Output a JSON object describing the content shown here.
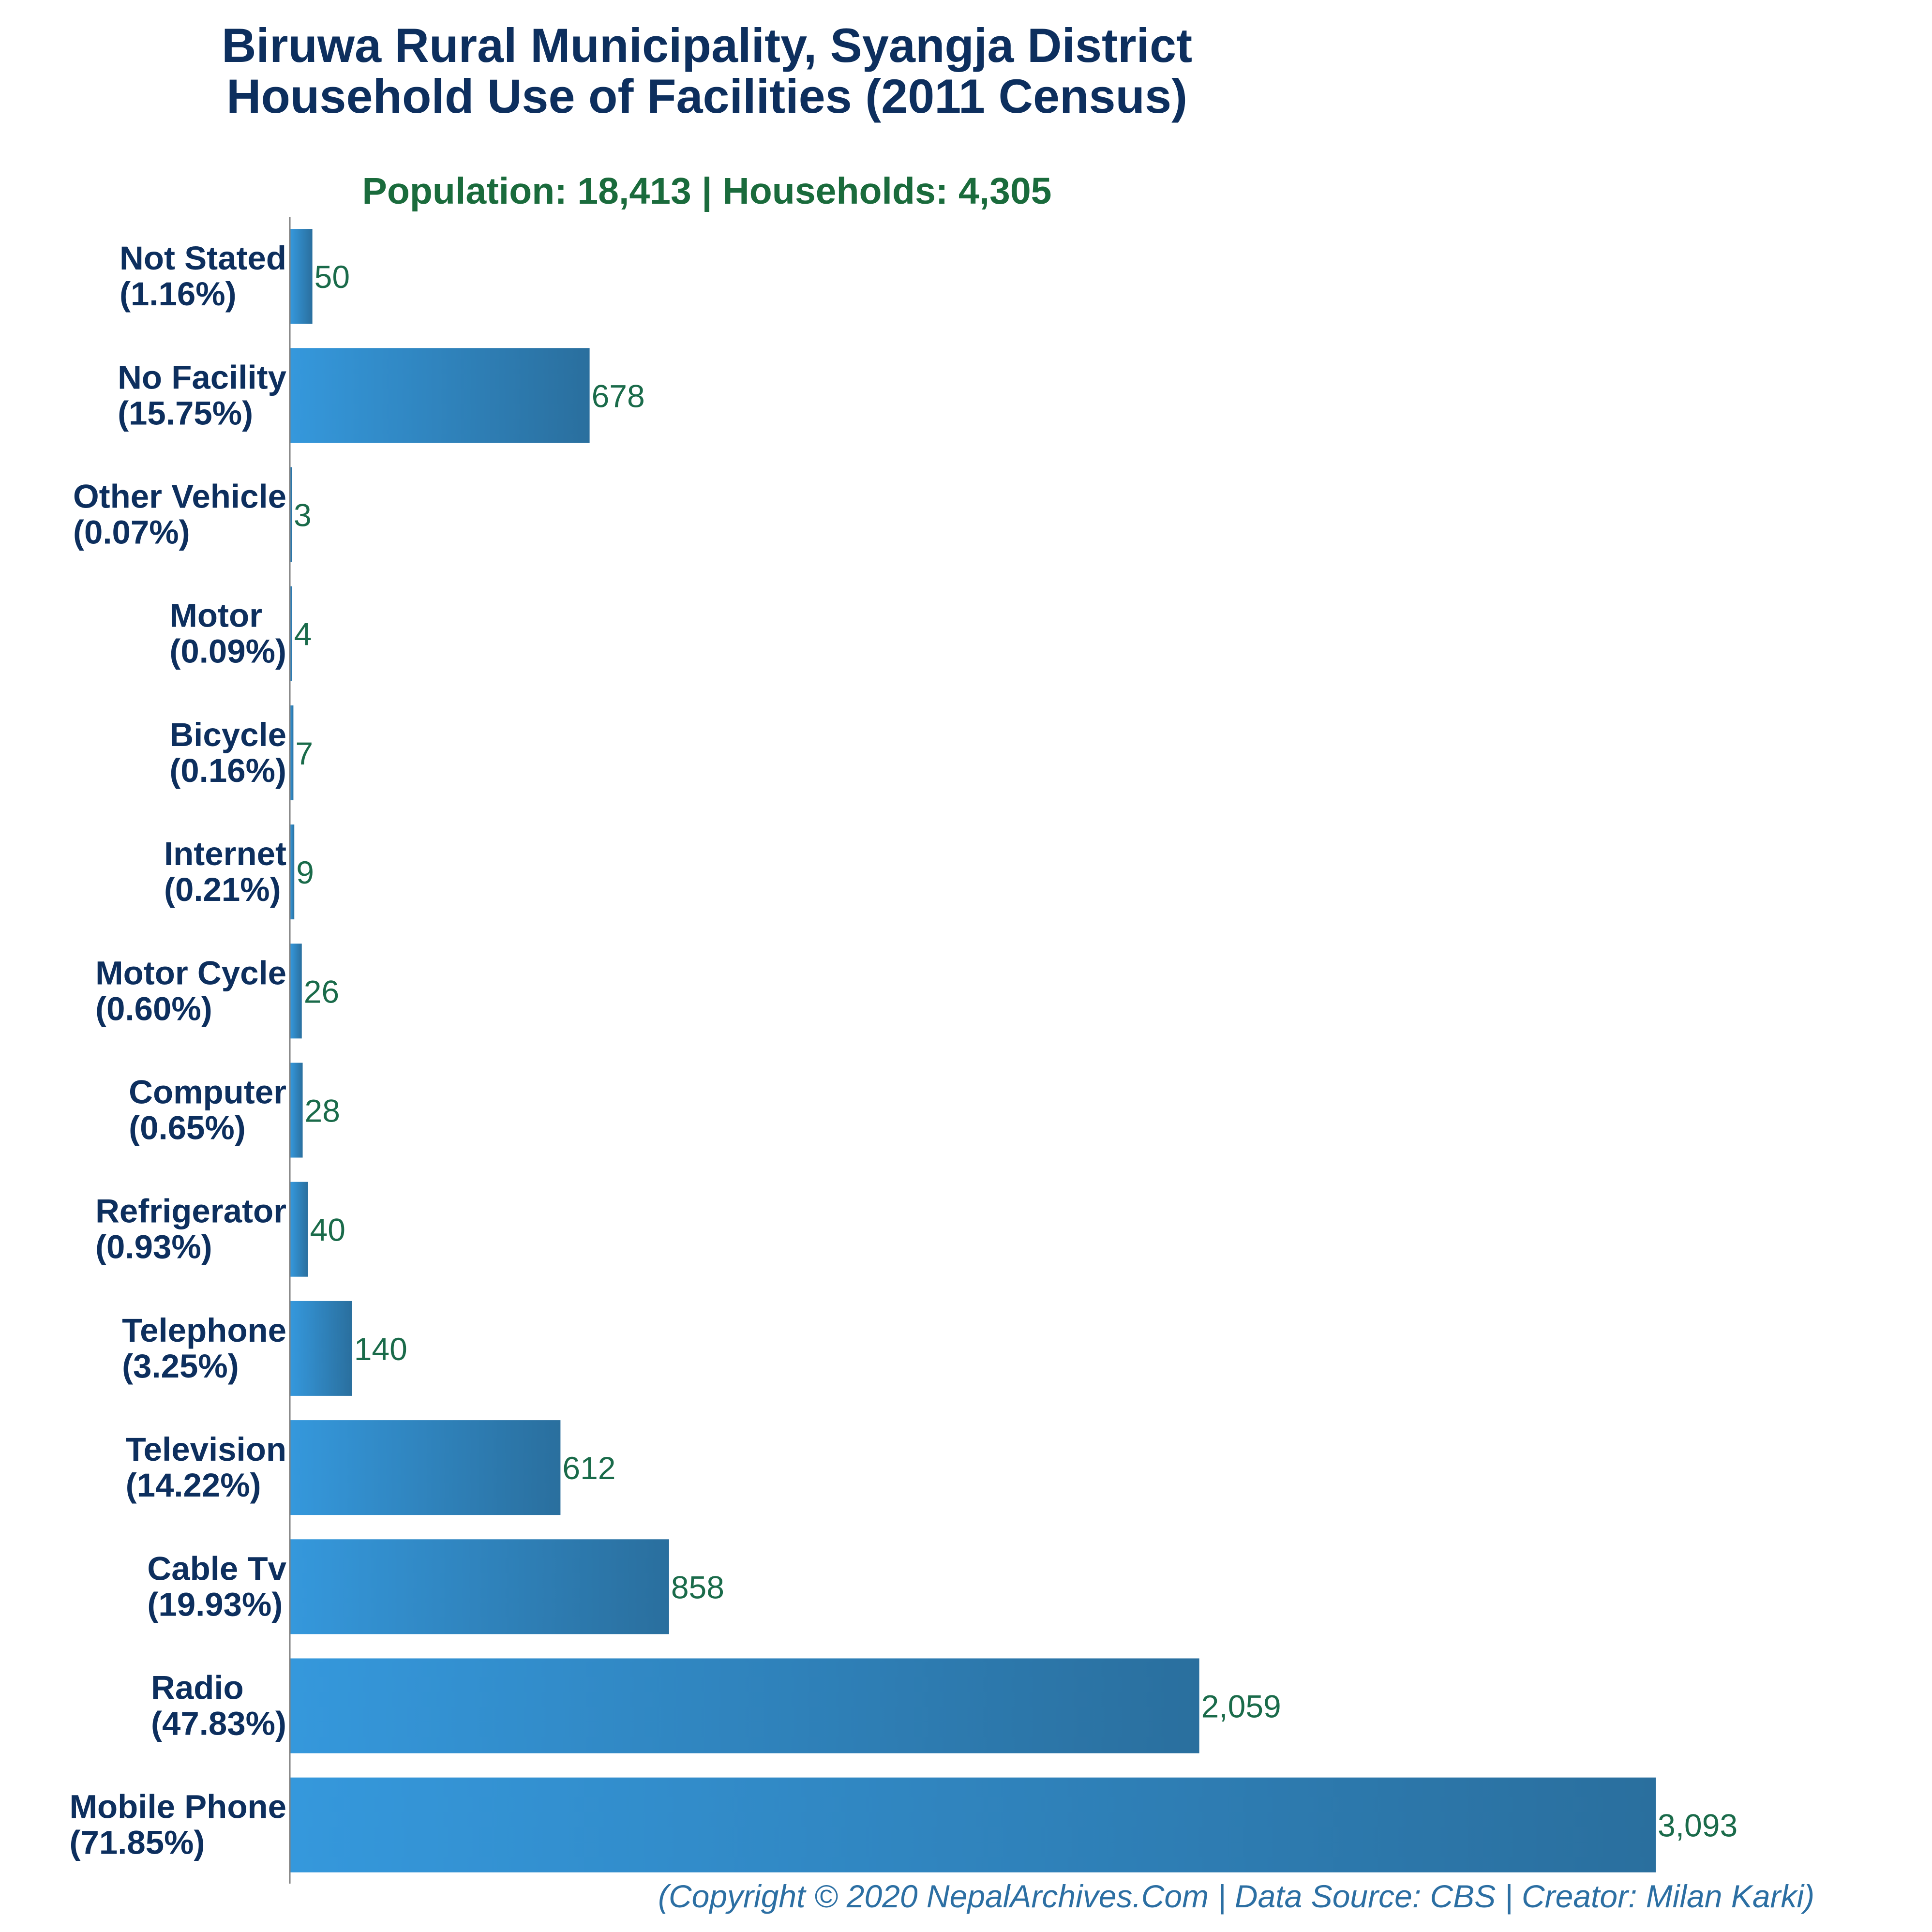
{
  "header": {
    "title_line1": "Biruwa Rural Municipality, Syangja District",
    "title_line2": "Household Use of Facilities (2011 Census)",
    "subtitle": "Population: 18,413 | Households: 4,305"
  },
  "footer": {
    "credit": "(Copyright © 2020 NepalArchives.Com | Data Source: CBS | Creator: Milan Karki)"
  },
  "colors": {
    "bar_start": "#3598dc",
    "bar_end": "#2a6f9e",
    "axis": "#808080"
  },
  "chart_data": {
    "type": "bar",
    "orientation": "horizontal",
    "title": "Biruwa Rural Municipality, Syangja District Household Use of Facilities (2011 Census)",
    "categories": [
      "Not Stated",
      "No Facility",
      "Other Vehicle",
      "Motor",
      "Bicycle",
      "Internet",
      "Motor Cycle",
      "Computer",
      "Refrigerator",
      "Telephone",
      "Television",
      "Cable Tv",
      "Radio",
      "Mobile Phone"
    ],
    "percent_labels": [
      "(1.16%)",
      "(15.75%)",
      "(0.07%)",
      "(0.09%)",
      "(0.16%)",
      "(0.21%)",
      "(0.60%)",
      "(0.65%)",
      "(0.93%)",
      "(3.25%)",
      "(14.22%)",
      "(19.93%)",
      "(47.83%)",
      "(71.85%)"
    ],
    "values": [
      50,
      678,
      3,
      4,
      7,
      9,
      26,
      28,
      40,
      140,
      612,
      858,
      2059,
      3093
    ],
    "value_labels": [
      "50",
      "678",
      "3",
      "4",
      "7",
      "9",
      "26",
      "28",
      "40",
      "140",
      "612",
      "858",
      "2,059",
      "3,093"
    ],
    "xlim": [
      0,
      3093
    ],
    "grid": false,
    "legend": "none"
  }
}
